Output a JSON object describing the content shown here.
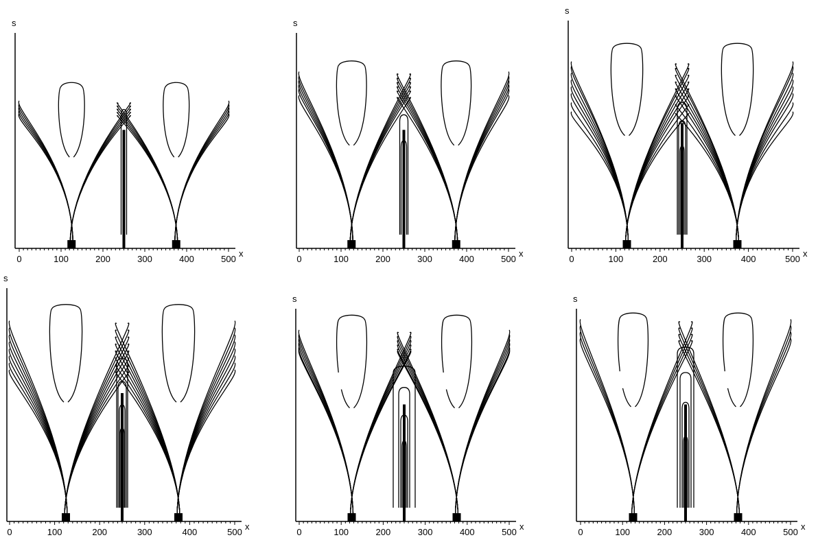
{
  "chart_data": [
    {
      "type": "contour",
      "xlabel": "x",
      "ylabel": "s",
      "xlim": [
        0,
        500
      ],
      "x_ticks": [
        "0",
        "100",
        "200",
        "300",
        "400",
        "500"
      ],
      "droplets": [
        {
          "center": 125,
          "half_width": 35,
          "top": 0.77
        },
        {
          "center": 375,
          "half_width": 35,
          "top": 0.77
        }
      ],
      "tree_left": {
        "root_x": 125,
        "levels": [
          0.685,
          0.67,
          0.655,
          0.64,
          0.625
        ]
      },
      "tree_right": {
        "root_x": 375,
        "levels": [
          0.685,
          0.67,
          0.655,
          0.64,
          0.625
        ]
      },
      "center_lobes": [
        {
          "top": 0.645,
          "half_width": 4
        }
      ]
    },
    {
      "type": "contour",
      "xlabel": "x",
      "ylabel": "s",
      "xlim": [
        0,
        500
      ],
      "x_ticks": [
        "0",
        "100",
        "200",
        "300",
        "400",
        "500"
      ],
      "droplets": [
        {
          "center": 125,
          "half_width": 40,
          "top": 0.87
        },
        {
          "center": 375,
          "half_width": 40,
          "top": 0.87
        }
      ],
      "tree_left": {
        "root_x": 125,
        "levels": [
          0.82,
          0.8,
          0.78,
          0.76,
          0.74,
          0.71
        ]
      },
      "tree_right": {
        "root_x": 375,
        "levels": [
          0.82,
          0.8,
          0.78,
          0.76,
          0.74,
          0.71
        ]
      },
      "center_lobes": [
        {
          "top": 0.62,
          "half_width": 6
        },
        {
          "top": 0.5,
          "half_width": 4
        }
      ]
    },
    {
      "type": "contour",
      "xlabel": "x",
      "ylabel": "s",
      "xlim": [
        0,
        500
      ],
      "x_ticks": [
        "0",
        "100",
        "200",
        "300",
        "400",
        "500"
      ],
      "droplets": [
        {
          "center": 125,
          "half_width": 40,
          "top": 0.9
        },
        {
          "center": 375,
          "half_width": 40,
          "top": 0.9
        }
      ],
      "tree_left": {
        "root_x": 125,
        "levels": [
          0.82,
          0.8,
          0.77,
          0.74,
          0.71,
          0.68,
          0.64,
          0.6
        ]
      },
      "tree_right": {
        "root_x": 375,
        "levels": [
          0.82,
          0.8,
          0.77,
          0.74,
          0.71,
          0.68,
          0.64,
          0.6
        ]
      },
      "center_lobes": [
        {
          "top": 0.64,
          "half_width": 7
        },
        {
          "top": 0.56,
          "half_width": 5
        },
        {
          "top": 0.45,
          "half_width": 3
        }
      ]
    },
    {
      "type": "contour",
      "xlabel": "x",
      "ylabel": "s",
      "xlim": [
        0,
        500
      ],
      "x_ticks": [
        "0",
        "100",
        "200",
        "300",
        "400",
        "500"
      ],
      "droplets": [
        {
          "center": 125,
          "half_width": 40,
          "top": 0.93
        },
        {
          "center": 375,
          "half_width": 40,
          "top": 0.93
        }
      ],
      "tree_left": {
        "root_x": 125,
        "levels": [
          0.86,
          0.83,
          0.8,
          0.77,
          0.74,
          0.71,
          0.68,
          0.65
        ]
      },
      "tree_right": {
        "root_x": 375,
        "levels": [
          0.86,
          0.83,
          0.8,
          0.77,
          0.74,
          0.71,
          0.68,
          0.65
        ]
      },
      "center_lobes": [
        {
          "top": 0.7,
          "half_width": 8
        },
        {
          "top": 0.6,
          "half_width": 6
        },
        {
          "top": 0.5,
          "half_width": 4
        },
        {
          "top": 0.4,
          "half_width": 3
        }
      ]
    },
    {
      "type": "contour",
      "xlabel": "x",
      "ylabel": "s",
      "xlim": [
        0,
        500
      ],
      "x_ticks": [
        "0",
        "100",
        "200",
        "300",
        "400",
        "500"
      ],
      "droplets": [
        {
          "center": 125,
          "half_width": 40,
          "top": 0.97,
          "broken": true
        },
        {
          "center": 375,
          "half_width": 40,
          "top": 0.97,
          "broken": true
        }
      ],
      "tree_left": {
        "root_x": 125,
        "levels": [
          0.9,
          0.88,
          0.86,
          0.84,
          0.82,
          0.81
        ]
      },
      "tree_right": {
        "root_x": 375,
        "levels": [
          0.9,
          0.88,
          0.86,
          0.84,
          0.82,
          0.81
        ]
      },
      "center_lobes": [
        {
          "top": 0.73,
          "half_width": 16
        },
        {
          "top": 0.63,
          "half_width": 8
        },
        {
          "top": 0.5,
          "half_width": 5
        },
        {
          "top": 0.38,
          "half_width": 3
        }
      ]
    },
    {
      "type": "contour",
      "xlabel": "x",
      "ylabel": "s",
      "xlim": [
        0,
        500
      ],
      "x_ticks": [
        "0",
        "100",
        "200",
        "300",
        "400",
        "500"
      ],
      "droplets": [
        {
          "center": 125,
          "half_width": 40,
          "top": 0.98,
          "broken": true
        },
        {
          "center": 375,
          "half_width": 40,
          "top": 0.98,
          "broken": true
        }
      ],
      "tree_left": {
        "root_x": 125,
        "levels": [
          0.95,
          0.92,
          0.89,
          0.86
        ]
      },
      "tree_right": {
        "root_x": 375,
        "levels": [
          0.95,
          0.92,
          0.89,
          0.86
        ]
      },
      "center_lobes": [
        {
          "top": 0.82,
          "half_width": 12
        },
        {
          "top": 0.7,
          "half_width": 8
        },
        {
          "top": 0.56,
          "half_width": 5
        },
        {
          "top": 0.4,
          "half_width": 3
        }
      ]
    }
  ]
}
